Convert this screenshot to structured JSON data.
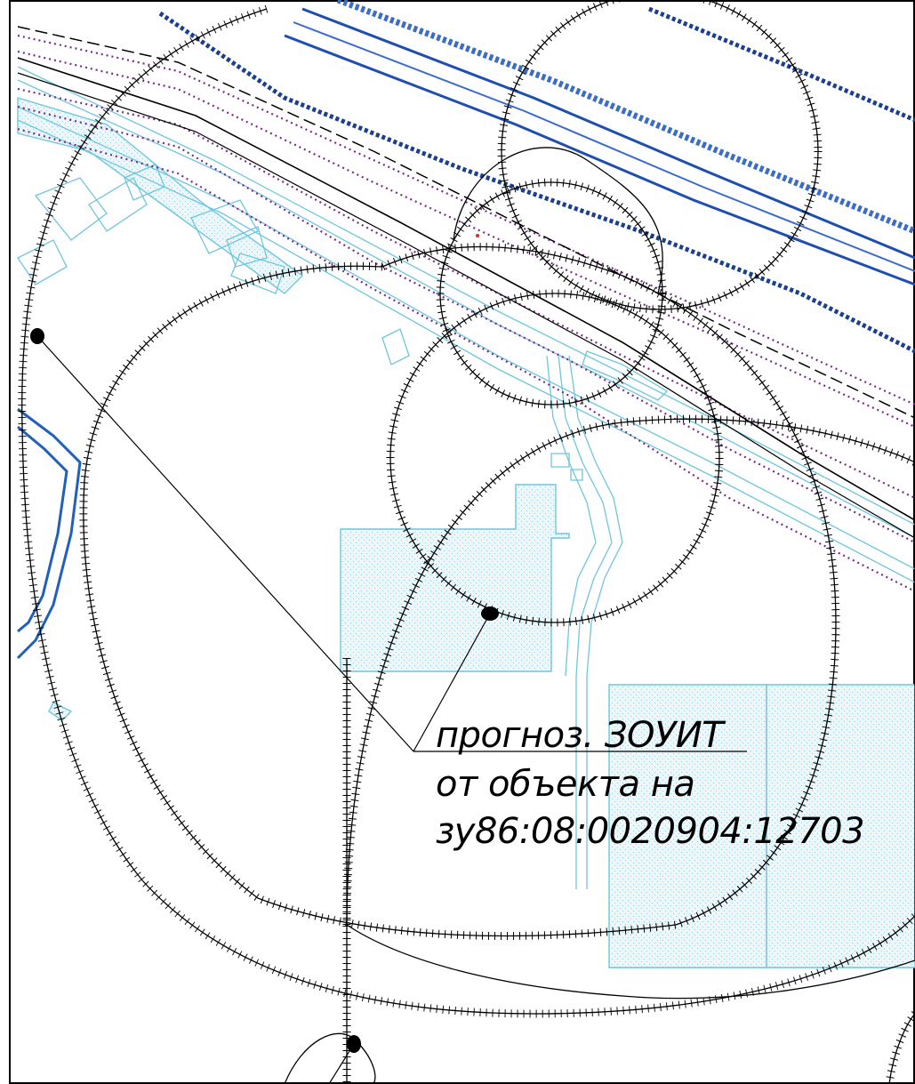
{
  "map": {
    "annotation": {
      "line1": "прогноз. ЗОУИТ",
      "line2": "от объекта на",
      "line3": "зу86:08:0020904:12703"
    },
    "colors": {
      "zone_boundary": "#000000",
      "road": "#3a6cc8",
      "road_edge": "#1f4fae",
      "dotted_route": "#1a3f8f",
      "utility_purple": "#7a2a8c",
      "parcel": "#6ec6de",
      "parcel_fill": "#e6f5fa",
      "river": "#2060b8"
    }
  }
}
